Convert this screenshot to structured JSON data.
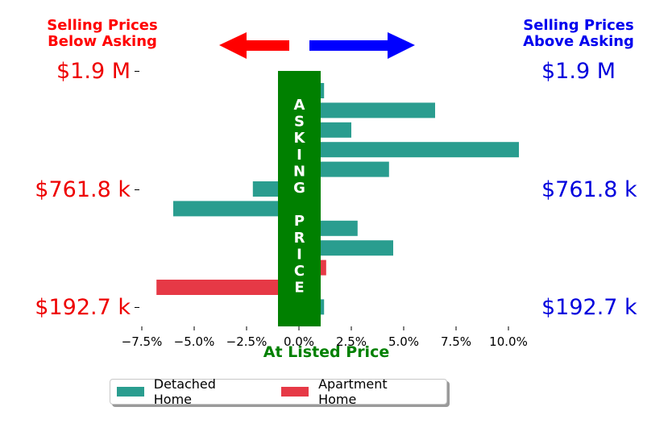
{
  "header": {
    "left_line1": "Selling Prices",
    "left_line2": "Below Asking",
    "right_line1": "Selling Prices",
    "right_line2": "Above Asking",
    "left_color": "#ff0000",
    "right_color": "#0000ee"
  },
  "price_labels": {
    "top": "$1.9 M",
    "middle": "$761.8 k",
    "bottom": "$192.7 k",
    "left_color": "#ee0000",
    "right_color": "#0000dd"
  },
  "asking_label": {
    "letters": [
      "A",
      "S",
      "K",
      "I",
      "N",
      "G",
      "",
      "P",
      "R",
      "I",
      "C",
      "E"
    ],
    "bar_color": "#008000",
    "text_color": "#ffffff"
  },
  "chart_data": {
    "type": "bar",
    "orientation": "horizontal",
    "xlabel": "At Listed Price",
    "xlim": [
      -7.5,
      10.5
    ],
    "xticks": [
      -7.5,
      -5.0,
      -2.5,
      0.0,
      2.5,
      5.0,
      7.5,
      10.0
    ],
    "xtick_labels": [
      "−7.5%",
      "−5.0%",
      "−2.5%",
      "0.0%",
      "2.5%",
      "5.0%",
      "7.5%",
      "10.0%"
    ],
    "bars": [
      {
        "series": "Detached Home",
        "value": 1.2
      },
      {
        "series": "Detached Home",
        "value": 6.5
      },
      {
        "series": "Detached Home",
        "value": 2.5
      },
      {
        "series": "Detached Home",
        "value": 10.5
      },
      {
        "series": "Detached Home",
        "value": 4.3
      },
      {
        "series": "Detached Home",
        "value": -2.2
      },
      {
        "series": "Detached Home",
        "value": -6.0
      },
      {
        "series": "Detached Home",
        "value": 2.8
      },
      {
        "series": "Detached Home",
        "value": 4.5
      },
      {
        "series": "Apartment Home",
        "value": 1.3
      },
      {
        "series": "Apartment Home",
        "value": -6.8
      },
      {
        "series": "Detached Home",
        "value": 1.2
      }
    ],
    "series": [
      {
        "name": "Detached Home",
        "color": "#2a9d8f"
      },
      {
        "name": "Apartment Home",
        "color": "#e63946"
      }
    ],
    "legend_position": "bottom"
  },
  "arrows": {
    "left_color": "#ff0000",
    "right_color": "#0000ff"
  }
}
